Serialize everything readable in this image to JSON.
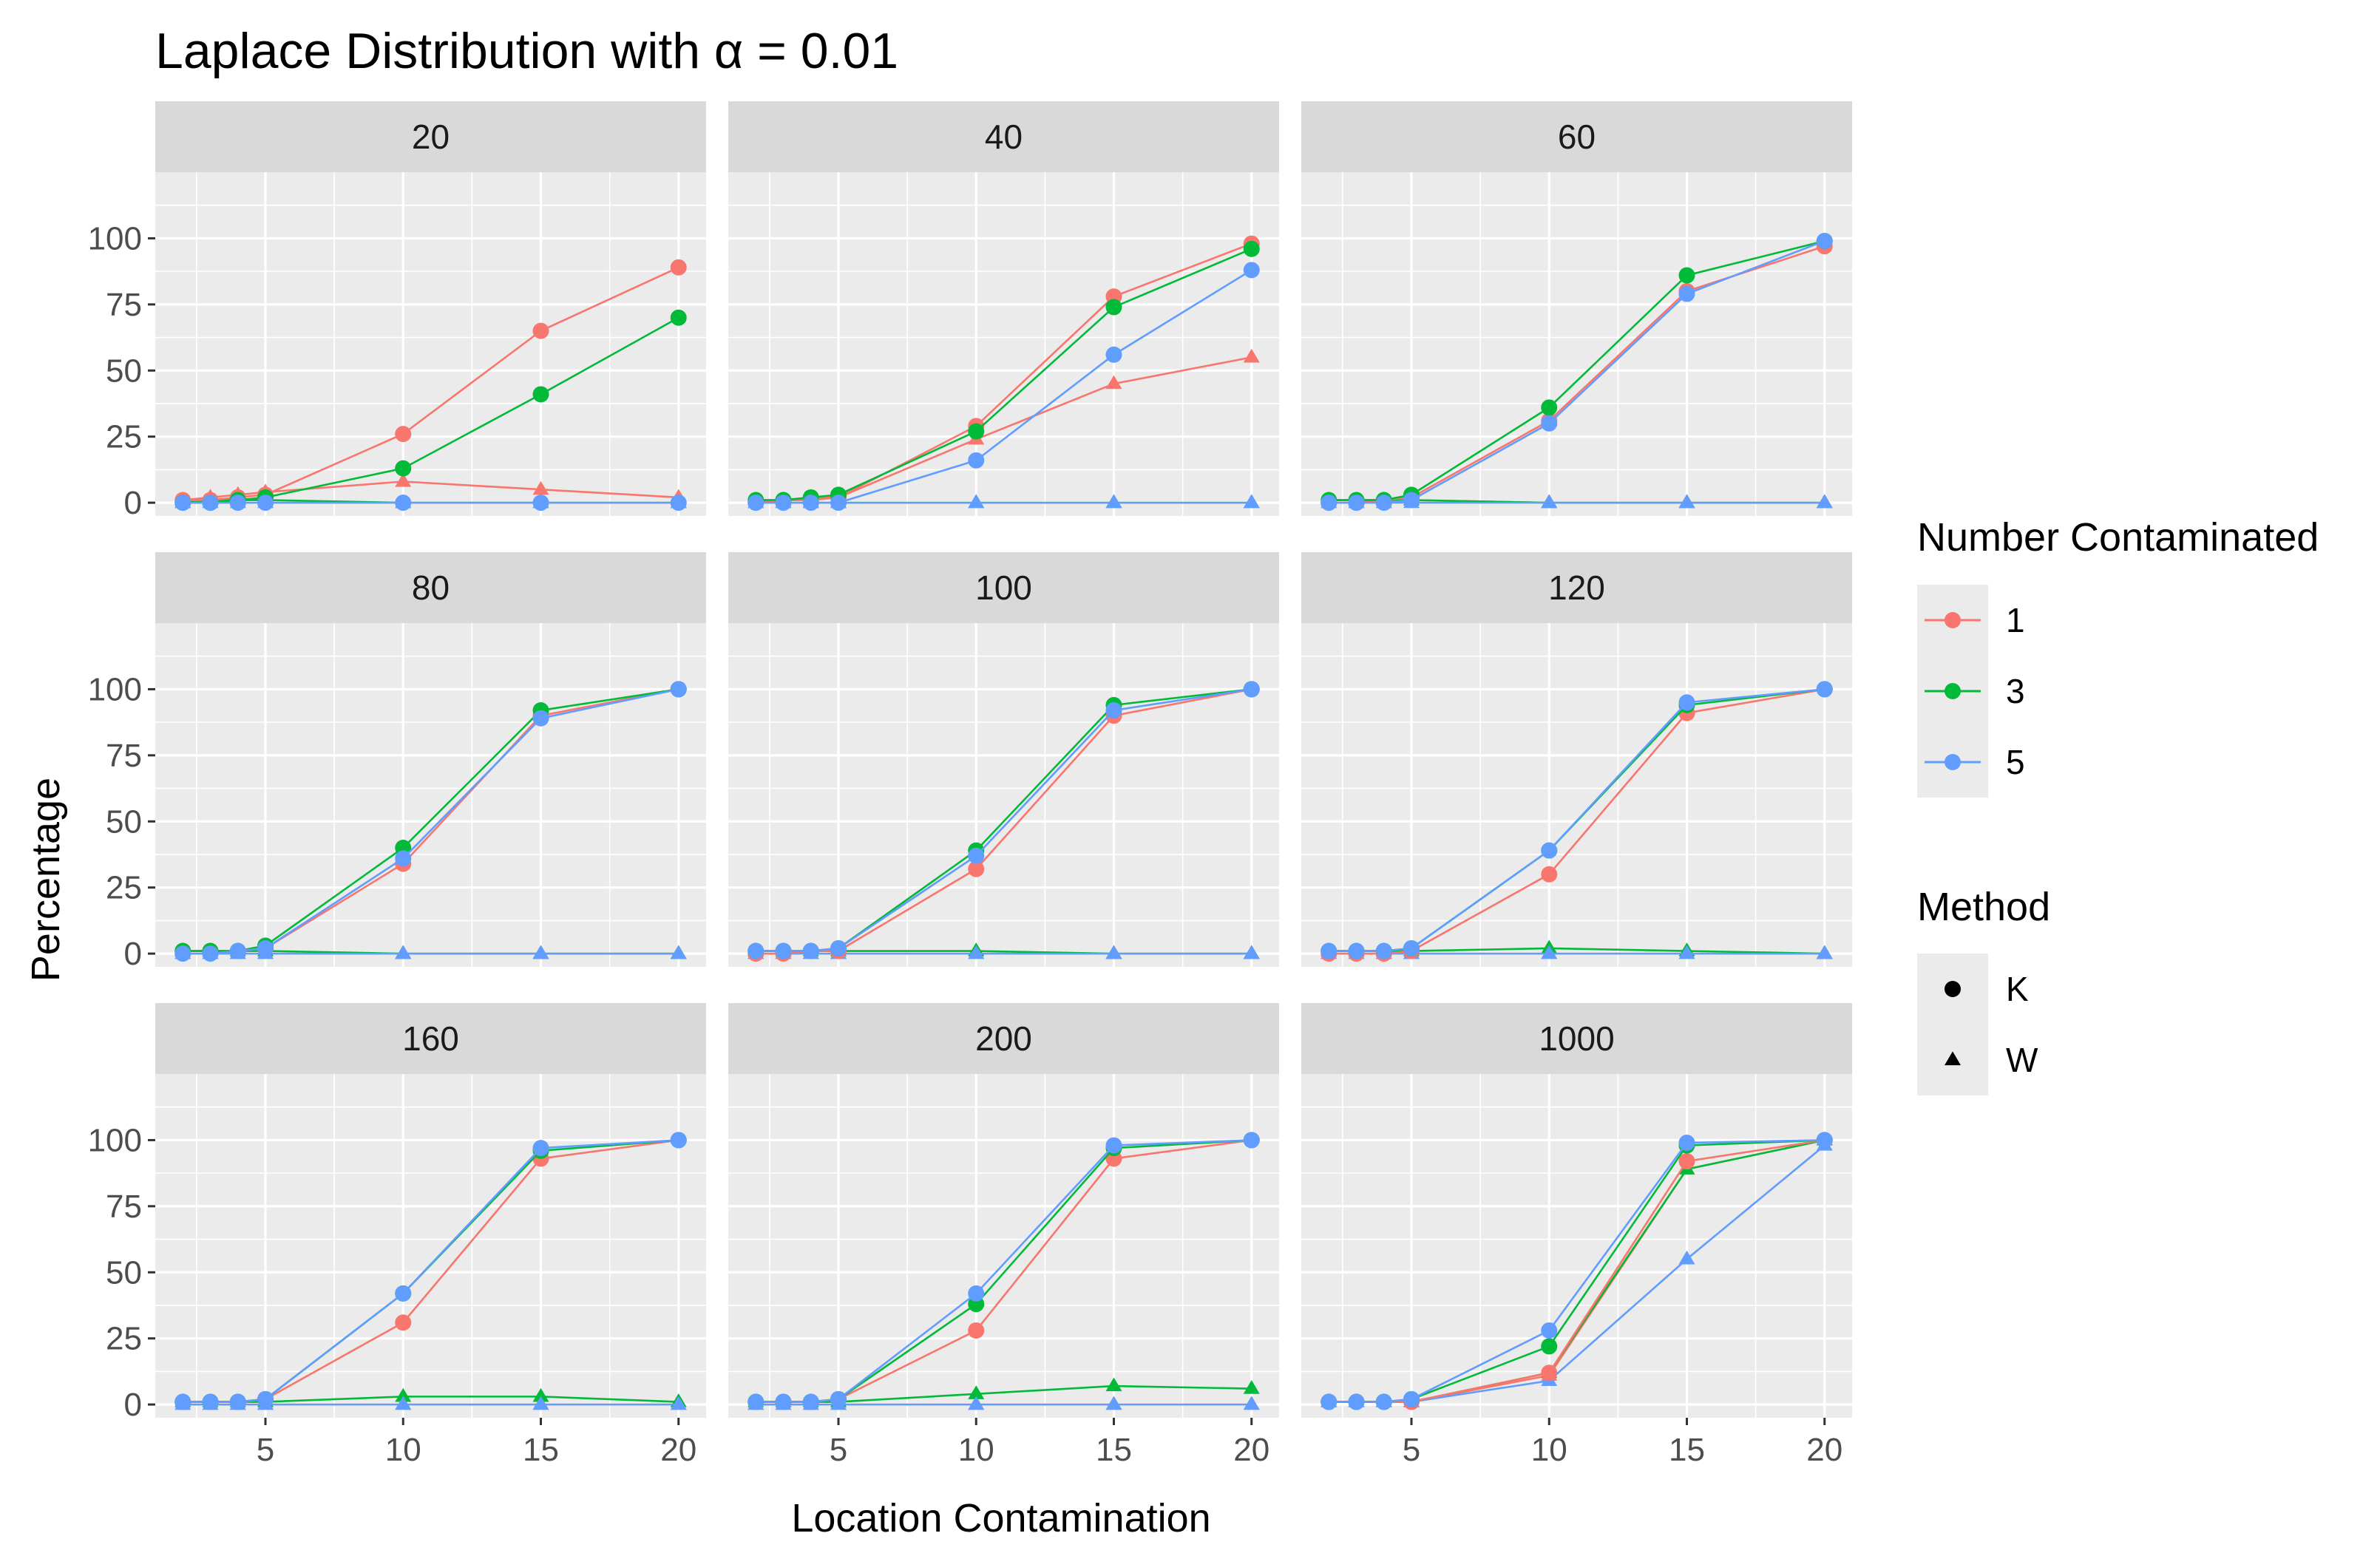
{
  "chart_data": {
    "type": "line",
    "title": "Laplace Distribution with α = 0.01",
    "xlabel": "Location Contamination",
    "ylabel": "Percentage",
    "x": [
      2,
      3,
      4,
      5,
      10,
      15,
      20
    ],
    "xlim": [
      1,
      21
    ],
    "ylim": [
      -5,
      125
    ],
    "xticks": [
      5,
      10,
      15,
      20
    ],
    "yticks": [
      0,
      25,
      50,
      75,
      100
    ],
    "legend": {
      "number_contaminated": {
        "title": "Number Contaminated",
        "entries": [
          {
            "label": "1",
            "color": "#F8766D"
          },
          {
            "label": "3",
            "color": "#00BA38"
          },
          {
            "label": "5",
            "color": "#619CFF"
          }
        ]
      },
      "method": {
        "title": "Method",
        "entries": [
          {
            "label": "K",
            "shape": "circle"
          },
          {
            "label": "W",
            "shape": "triangle"
          }
        ]
      }
    },
    "panels": [
      {
        "label": "20",
        "series": {
          "K1": [
            1,
            1,
            2,
            3,
            26,
            65,
            89
          ],
          "K3": [
            0,
            0,
            1,
            2,
            13,
            41,
            70
          ],
          "K5": [
            0,
            0,
            0,
            0,
            0,
            0,
            0
          ],
          "W1": [
            1,
            2,
            3,
            4,
            8,
            5,
            2
          ],
          "W3": [
            0,
            1,
            1,
            1,
            0,
            0,
            0
          ],
          "W5": [
            0,
            0,
            0,
            0,
            0,
            0,
            0
          ]
        }
      },
      {
        "label": "40",
        "series": {
          "K1": [
            0,
            1,
            1,
            2,
            29,
            78,
            98
          ],
          "K3": [
            1,
            1,
            2,
            3,
            27,
            74,
            96
          ],
          "K5": [
            0,
            0,
            0,
            0,
            16,
            56,
            88
          ],
          "W1": [
            1,
            1,
            2,
            2,
            24,
            45,
            55
          ],
          "W3": [
            0,
            0,
            0,
            0,
            0,
            0,
            0
          ],
          "W5": [
            0,
            0,
            0,
            0,
            0,
            0,
            0
          ]
        }
      },
      {
        "label": "60",
        "series": {
          "K1": [
            0,
            0,
            1,
            2,
            31,
            80,
            97
          ],
          "K3": [
            1,
            1,
            1,
            3,
            36,
            86,
            99
          ],
          "K5": [
            0,
            0,
            0,
            1,
            30,
            79,
            99
          ],
          "W1": [
            0,
            0,
            0,
            1,
            0,
            0,
            0
          ],
          "W3": [
            1,
            1,
            1,
            1,
            0,
            0,
            0
          ],
          "W5": [
            0,
            0,
            0,
            0,
            0,
            0,
            0
          ]
        }
      },
      {
        "label": "80",
        "series": {
          "K1": [
            1,
            1,
            1,
            2,
            34,
            90,
            100
          ],
          "K3": [
            1,
            1,
            1,
            3,
            40,
            92,
            100
          ],
          "K5": [
            0,
            0,
            1,
            2,
            36,
            89,
            100
          ],
          "W1": [
            0,
            0,
            0,
            0,
            0,
            0,
            0
          ],
          "W3": [
            1,
            1,
            1,
            1,
            0,
            0,
            0
          ],
          "W5": [
            0,
            0,
            0,
            0,
            0,
            0,
            0
          ]
        }
      },
      {
        "label": "100",
        "series": {
          "K1": [
            0,
            0,
            1,
            1,
            32,
            90,
            100
          ],
          "K3": [
            1,
            1,
            1,
            2,
            39,
            94,
            100
          ],
          "K5": [
            1,
            1,
            1,
            2,
            37,
            92,
            100
          ],
          "W1": [
            0,
            0,
            0,
            0,
            0,
            0,
            0
          ],
          "W3": [
            1,
            1,
            1,
            1,
            1,
            0,
            0
          ],
          "W5": [
            0,
            0,
            0,
            0,
            0,
            0,
            0
          ]
        }
      },
      {
        "label": "120",
        "series": {
          "K1": [
            0,
            0,
            0,
            1,
            30,
            91,
            100
          ],
          "K3": [
            1,
            1,
            1,
            2,
            39,
            94,
            100
          ],
          "K5": [
            1,
            1,
            1,
            2,
            39,
            95,
            100
          ],
          "W1": [
            0,
            0,
            0,
            0,
            0,
            0,
            0
          ],
          "W3": [
            1,
            1,
            1,
            1,
            2,
            1,
            0
          ],
          "W5": [
            0,
            0,
            0,
            0,
            0,
            0,
            0
          ]
        }
      },
      {
        "label": "160",
        "series": {
          "K1": [
            1,
            1,
            1,
            2,
            31,
            93,
            100
          ],
          "K3": [
            1,
            1,
            1,
            2,
            42,
            96,
            100
          ],
          "K5": [
            1,
            1,
            1,
            2,
            42,
            97,
            100
          ],
          "W1": [
            0,
            0,
            0,
            0,
            0,
            0,
            0
          ],
          "W3": [
            1,
            1,
            1,
            1,
            3,
            3,
            1
          ],
          "W5": [
            0,
            0,
            0,
            0,
            0,
            0,
            0
          ]
        }
      },
      {
        "label": "200",
        "series": {
          "K1": [
            1,
            1,
            1,
            2,
            28,
            93,
            100
          ],
          "K3": [
            1,
            1,
            1,
            2,
            38,
            97,
            100
          ],
          "K5": [
            1,
            1,
            1,
            2,
            42,
            98,
            100
          ],
          "W1": [
            0,
            0,
            0,
            0,
            0,
            0,
            0
          ],
          "W3": [
            1,
            1,
            1,
            1,
            4,
            7,
            6
          ],
          "W5": [
            0,
            0,
            0,
            0,
            0,
            0,
            0
          ]
        }
      },
      {
        "label": "1000",
        "series": {
          "K1": [
            1,
            1,
            1,
            1,
            12,
            92,
            100
          ],
          "K3": [
            1,
            1,
            1,
            2,
            22,
            98,
            100
          ],
          "K5": [
            1,
            1,
            1,
            2,
            28,
            99,
            100
          ],
          "W1": [
            1,
            1,
            1,
            1,
            11,
            89,
            100
          ],
          "W3": [
            1,
            1,
            1,
            1,
            12,
            89,
            100
          ],
          "W5": [
            1,
            1,
            1,
            1,
            9,
            55,
            98
          ]
        }
      }
    ]
  }
}
